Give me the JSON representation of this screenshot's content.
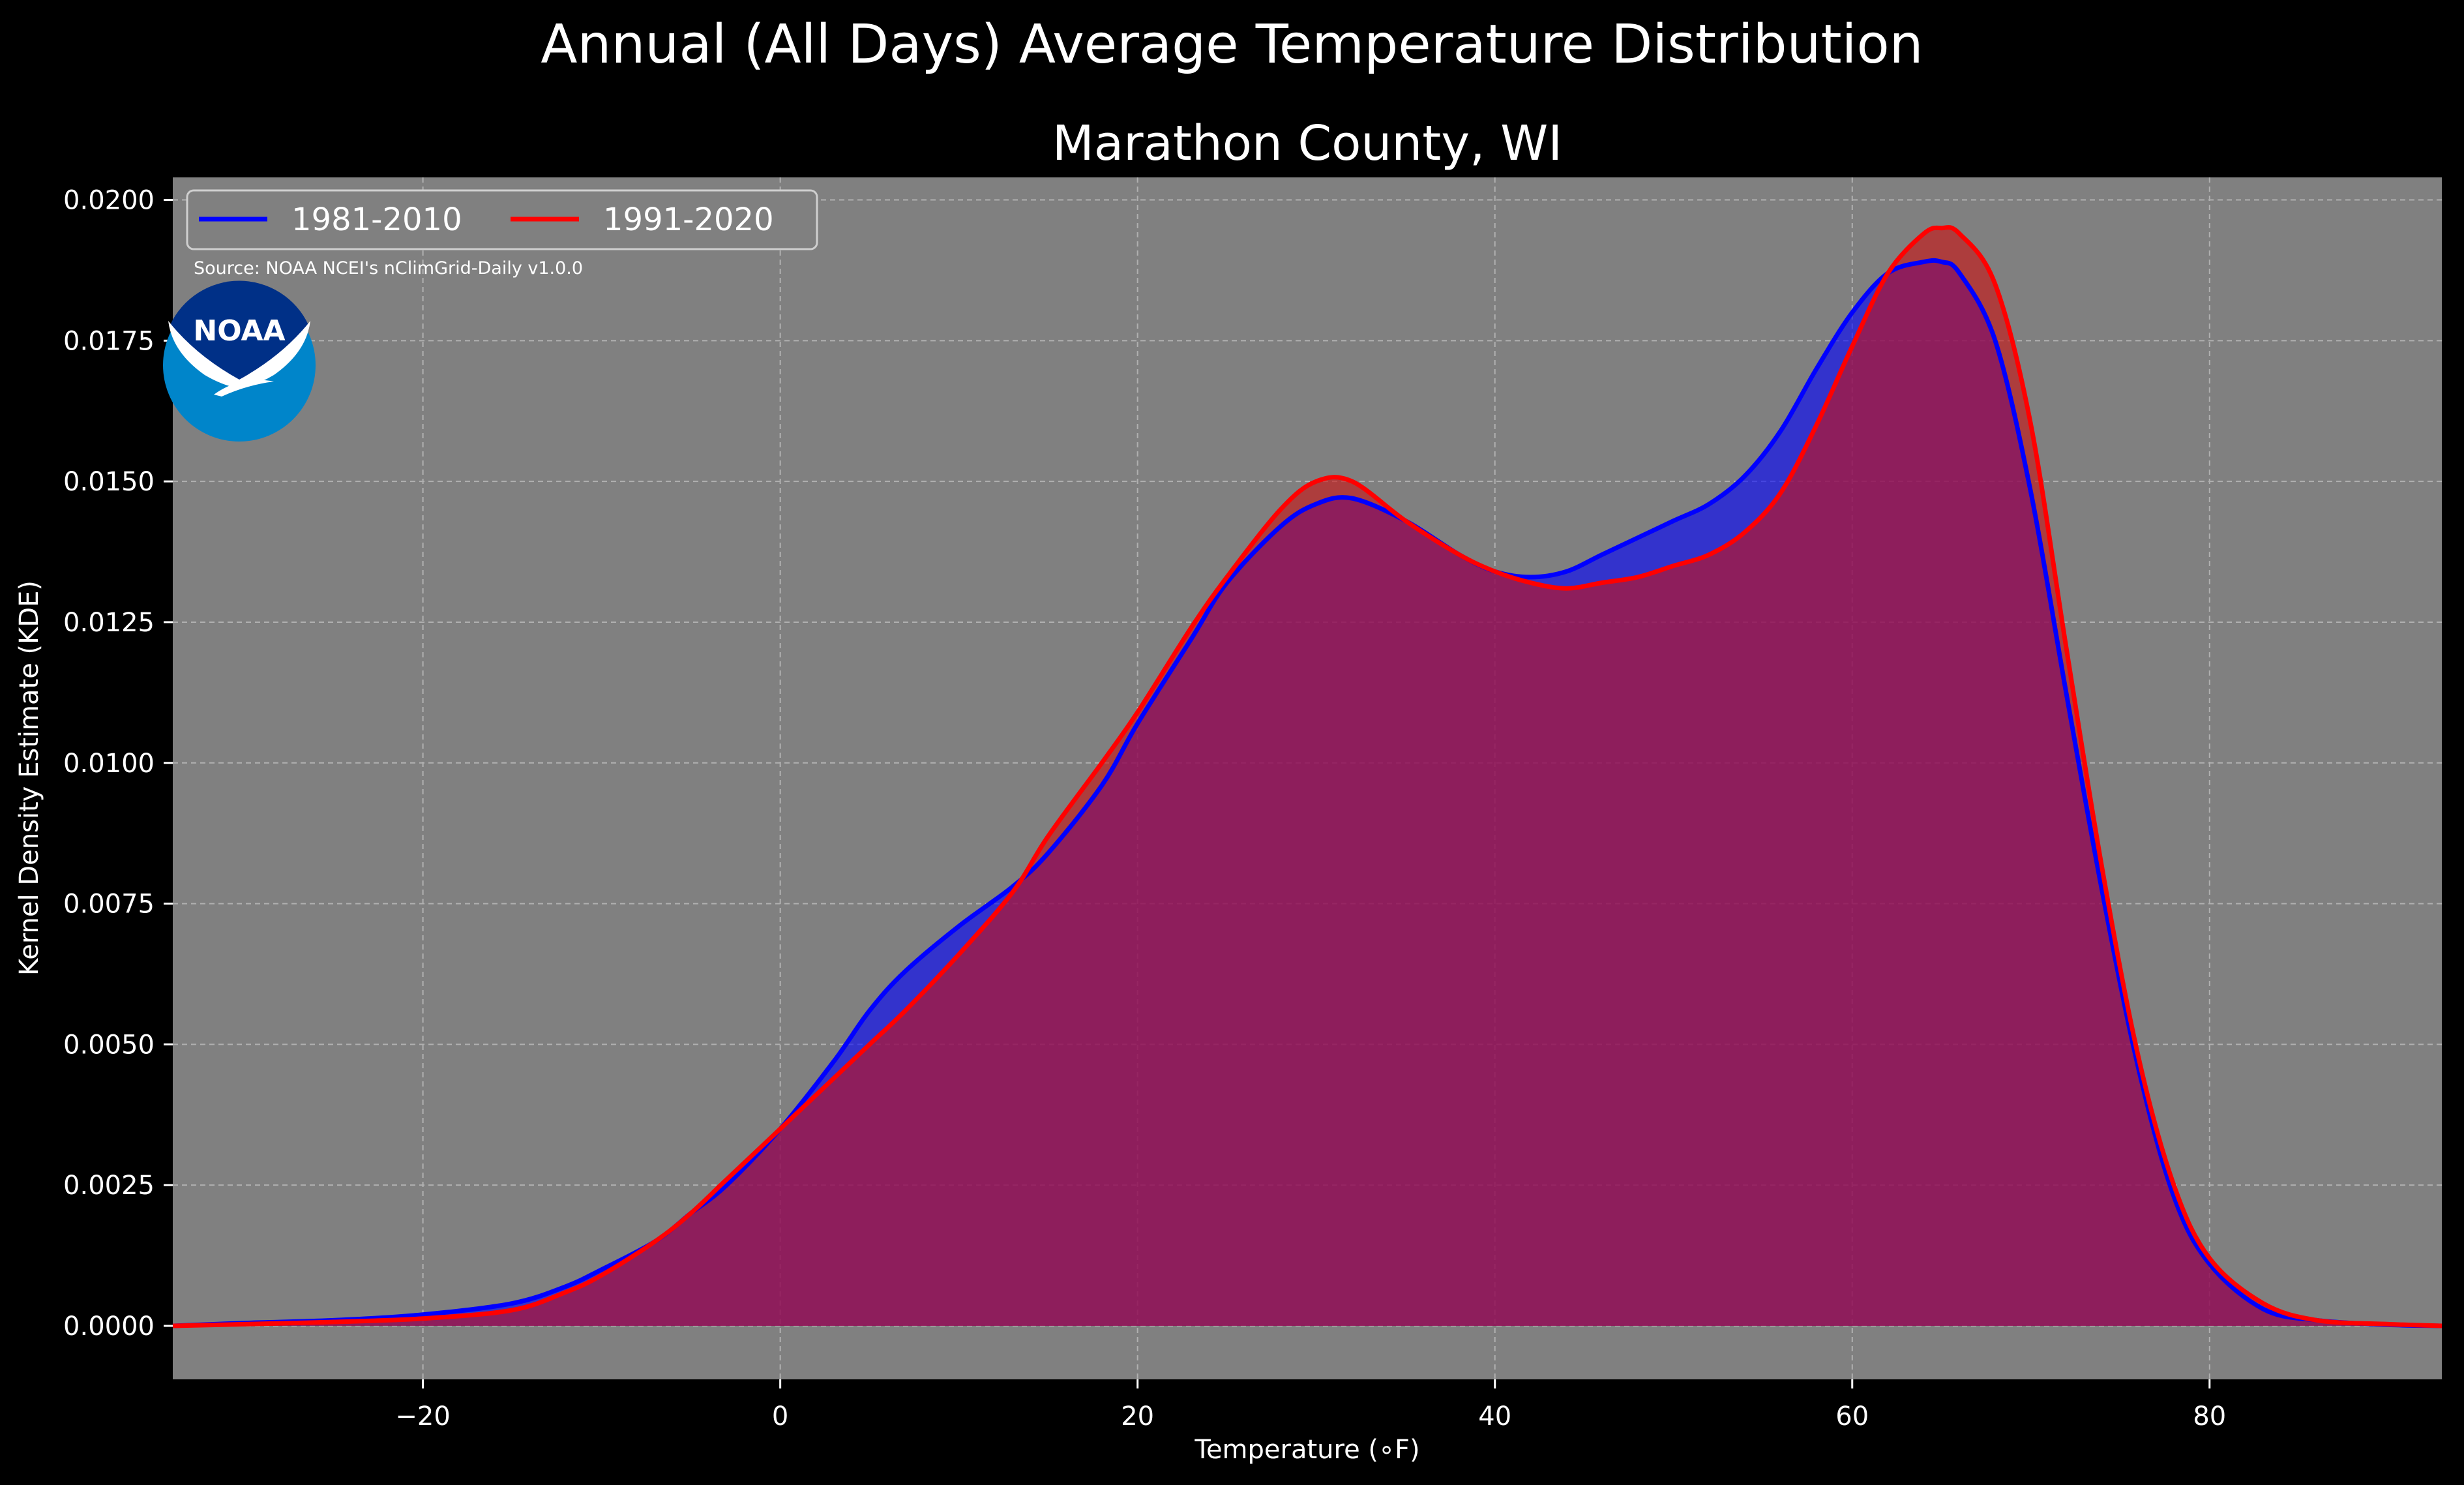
{
  "chart_data": {
    "type": "area",
    "title": "Annual (All Days) Average Temperature Distribution",
    "subtitle": "Marathon County, WI",
    "xlabel": "Temperature (∘F)",
    "ylabel": "Kernel Density Estimate (KDE)",
    "xlim": [
      -34,
      93
    ],
    "ylim": [
      -0.00095,
      0.0204
    ],
    "xticks": [
      -20,
      0,
      20,
      40,
      60,
      80
    ],
    "xtick_labels": [
      "−20",
      "0",
      "20",
      "40",
      "60",
      "80"
    ],
    "yticks": [
      0,
      0.0025,
      0.005,
      0.0075,
      0.01,
      0.0125,
      0.015,
      0.0175,
      0.02
    ],
    "ytick_labels": [
      "0.0000",
      "0.0025",
      "0.0050",
      "0.0075",
      "0.0100",
      "0.0125",
      "0.0150",
      "0.0175",
      "0.0200"
    ],
    "grid": true,
    "legend_position": "top-left",
    "source_note": "Source: NOAA NCEI's nClimGrid-Daily v1.0.0",
    "series": [
      {
        "name": "1981-2010",
        "color": "#0000ff",
        "fill_color": "#0000ff",
        "x": [
          -34,
          -30,
          -25,
          -20,
          -15,
          -12,
          -10,
          -7,
          -5,
          -3,
          0,
          3,
          5,
          7,
          10,
          13,
          15,
          18,
          20,
          23,
          25,
          28,
          30,
          32,
          35,
          38,
          40,
          42,
          44,
          46,
          48,
          50,
          52,
          54,
          56,
          58,
          60,
          62,
          64,
          65,
          66,
          68,
          70,
          72,
          74,
          76,
          78,
          80,
          83,
          86,
          90,
          93
        ],
        "y": [
          0,
          5e-05,
          0.0001,
          0.0002,
          0.0004,
          0.0007,
          0.001,
          0.0015,
          0.002,
          0.0025,
          0.0035,
          0.0047,
          0.0056,
          0.0063,
          0.0071,
          0.0078,
          0.0084,
          0.0096,
          0.0107,
          0.0122,
          0.0132,
          0.0142,
          0.0146,
          0.0147,
          0.0143,
          0.0137,
          0.0134,
          0.0133,
          0.0134,
          0.0137,
          0.014,
          0.0143,
          0.0146,
          0.0151,
          0.0159,
          0.017,
          0.018,
          0.0187,
          0.0189,
          0.0189,
          0.0187,
          0.0175,
          0.0148,
          0.0112,
          0.0077,
          0.0046,
          0.0023,
          0.0011,
          0.0003,
          0.0001,
          2e-05,
          0
        ]
      },
      {
        "name": "1991-2020",
        "color": "#ff0000",
        "fill_color": "#cc1010",
        "x": [
          -34,
          -30,
          -25,
          -20,
          -15,
          -12,
          -10,
          -7,
          -5,
          -3,
          0,
          3,
          5,
          7,
          10,
          13,
          15,
          18,
          20,
          23,
          25,
          28,
          30,
          32,
          35,
          38,
          40,
          42,
          44,
          46,
          48,
          50,
          52,
          54,
          56,
          58,
          60,
          62,
          64,
          65,
          66,
          68,
          70,
          72,
          74,
          76,
          78,
          80,
          83,
          86,
          90,
          93
        ],
        "y": [
          0,
          3e-05,
          7e-05,
          0.00013,
          0.00028,
          0.0006,
          0.0009,
          0.0015,
          0.002,
          0.0026,
          0.0035,
          0.0044,
          0.005,
          0.0056,
          0.0066,
          0.0077,
          0.0087,
          0.01,
          0.0109,
          0.0124,
          0.0133,
          0.0145,
          0.015,
          0.015,
          0.0143,
          0.0137,
          0.0134,
          0.0132,
          0.0131,
          0.0132,
          0.0133,
          0.0135,
          0.0137,
          0.0141,
          0.0148,
          0.016,
          0.0174,
          0.0187,
          0.0194,
          0.0195,
          0.0194,
          0.0185,
          0.016,
          0.012,
          0.0081,
          0.0048,
          0.0025,
          0.0012,
          0.0004,
          0.0001,
          3e-05,
          0
        ]
      }
    ]
  }
}
